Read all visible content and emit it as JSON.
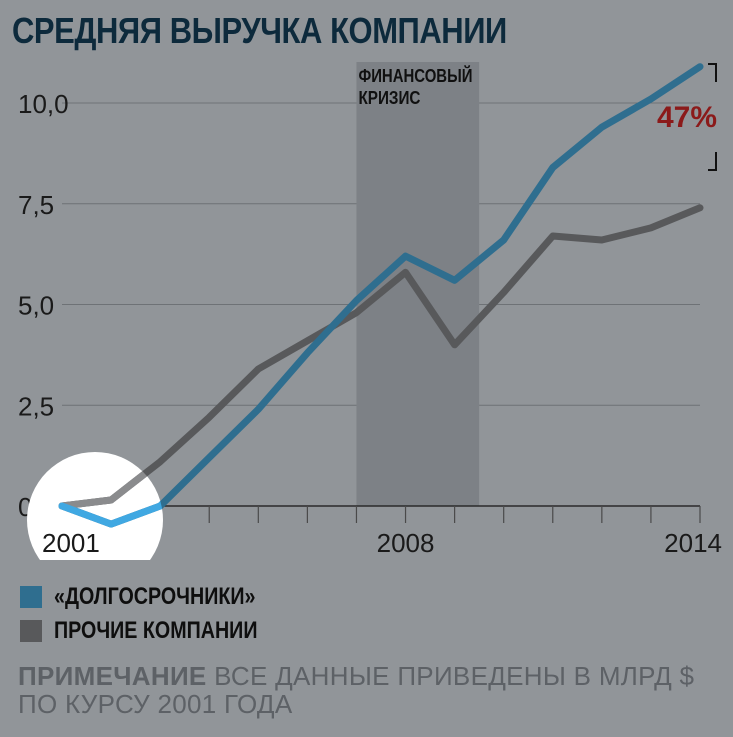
{
  "title": "СРЕДНЯЯ ВЫРУЧКА КОМПАНИИ",
  "chart_data": {
    "type": "line",
    "title": "СРЕДНЯЯ ВЫРУЧКА КОМПАНИИ",
    "x": [
      2001,
      2002,
      2003,
      2004,
      2005,
      2006,
      2007,
      2008,
      2009,
      2010,
      2011,
      2012,
      2013,
      2014
    ],
    "xlim": [
      2001,
      2014
    ],
    "ylim": [
      0,
      11
    ],
    "y_ticks": [
      0,
      2.5,
      5.0,
      7.5,
      10.0
    ],
    "y_tick_labels": [
      "0",
      "2,5",
      "5,0",
      "7,5",
      "10,0"
    ],
    "x_tick_labels": [
      "2001",
      "2008",
      "2014"
    ],
    "x_tick_label_values": [
      2001,
      2008,
      2014
    ],
    "grid": true,
    "series": [
      {
        "name": "«ДОЛГОСРОЧНИКИ»",
        "color": "#2f6e8f",
        "highlight_color": "#40a8e2",
        "values": [
          0.0,
          -0.45,
          0.0,
          1.2,
          2.4,
          3.8,
          5.1,
          6.2,
          5.6,
          6.6,
          8.4,
          9.4,
          10.1,
          10.9
        ]
      },
      {
        "name": "ПРОЧИЕ КОМПАНИИ",
        "color": "#58595b",
        "highlight_color": "#8a8b8d",
        "values": [
          0.0,
          0.15,
          1.1,
          2.2,
          3.4,
          4.1,
          4.8,
          5.8,
          4.0,
          5.3,
          6.7,
          6.6,
          6.9,
          7.4
        ]
      }
    ],
    "shaded_region": {
      "from": 2007,
      "to": 2009.5,
      "label_line1": "ФИНАНСОВЫЙ",
      "label_line2": "КРИЗИС"
    },
    "annotation": {
      "text": "47%",
      "color": "#8b1a1a"
    },
    "legend_placement": "bottom-left"
  },
  "legend": [
    {
      "label": "«ДОЛГОСРОЧНИКИ»",
      "color": "#2f6e8f"
    },
    {
      "label": "ПРОЧИЕ КОМПАНИИ",
      "color": "#58595b"
    }
  ],
  "note": {
    "head": "ПРИМЕЧАНИЕ",
    "line1": "ВСЕ ДАННЫЕ ПРИВЕДЕНЫ В МЛРД $",
    "line2": "ПО КУРСУ 2001 ГОДА"
  }
}
